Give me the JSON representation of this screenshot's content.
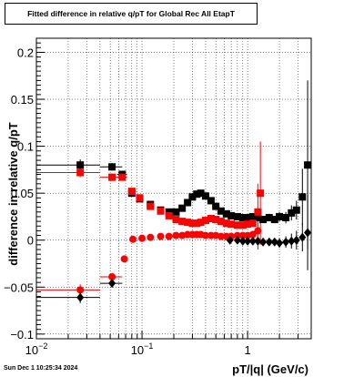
{
  "title": "Fitted difference in relative q/pT for Global Rec All EtapT",
  "timestamp": "Sun Dec  1 10:25:34 2024",
  "chart_data": {
    "type": "scatter",
    "xlabel": "pT/|q| (GeV/c)",
    "ylabel": "difference in relative q/pT",
    "xscale": "log",
    "xlim": [
      0.01,
      4.0
    ],
    "ylim": [
      -0.105,
      0.215
    ],
    "grid": true,
    "x_ticks": [
      {
        "value": 0.01,
        "label": "10",
        "sup": "−2"
      },
      {
        "value": 0.1,
        "label": "10",
        "sup": "−1"
      },
      {
        "value": 1,
        "label": "1",
        "sup": ""
      }
    ],
    "y_ticks": [
      {
        "value": -0.1,
        "label": "−0.1"
      },
      {
        "value": -0.05,
        "label": "−0.05"
      },
      {
        "value": 0,
        "label": "0"
      },
      {
        "value": 0.05,
        "label": "0.05"
      },
      {
        "value": 0.1,
        "label": "0.1"
      },
      {
        "value": 0.15,
        "label": "0.15"
      },
      {
        "value": 0.2,
        "label": "0.2"
      }
    ],
    "series": [
      {
        "color": "#000000",
        "marker": "square",
        "points": [
          {
            "x": 0.026,
            "y": 0.08,
            "xlo": 0.01,
            "xhi": 0.04,
            "ey": 0.006
          },
          {
            "x": 0.052,
            "y": 0.078,
            "xlo": 0.04,
            "xhi": 0.065,
            "ey": 0.004
          },
          {
            "x": 0.065,
            "y": 0.07,
            "xlo": 0.058,
            "xhi": 0.072,
            "ey": 0.003
          },
          {
            "x": 0.08,
            "y": 0.05,
            "ey": 0.002
          },
          {
            "x": 0.095,
            "y": 0.044,
            "ey": 0.002
          },
          {
            "x": 0.12,
            "y": 0.038,
            "ey": 0.002
          },
          {
            "x": 0.15,
            "y": 0.032,
            "ey": 0.002
          },
          {
            "x": 0.18,
            "y": 0.03,
            "ey": 0.002
          },
          {
            "x": 0.21,
            "y": 0.03,
            "ey": 0.002
          },
          {
            "x": 0.24,
            "y": 0.034,
            "ey": 0.002
          },
          {
            "x": 0.27,
            "y": 0.04,
            "ey": 0.002
          },
          {
            "x": 0.3,
            "y": 0.046,
            "ey": 0.002
          },
          {
            "x": 0.33,
            "y": 0.049,
            "ey": 0.002
          },
          {
            "x": 0.36,
            "y": 0.05,
            "ey": 0.002
          },
          {
            "x": 0.4,
            "y": 0.047,
            "ey": 0.002
          },
          {
            "x": 0.45,
            "y": 0.042,
            "ey": 0.002
          },
          {
            "x": 0.5,
            "y": 0.036,
            "ey": 0.002
          },
          {
            "x": 0.56,
            "y": 0.031,
            "ey": 0.002
          },
          {
            "x": 0.63,
            "y": 0.028,
            "ey": 0.002
          },
          {
            "x": 0.7,
            "y": 0.026,
            "ey": 0.002
          },
          {
            "x": 0.8,
            "y": 0.025,
            "ey": 0.002
          },
          {
            "x": 0.9,
            "y": 0.024,
            "ey": 0.002
          },
          {
            "x": 1.0,
            "y": 0.024,
            "ey": 0.002
          },
          {
            "x": 1.12,
            "y": 0.025,
            "ey": 0.003
          },
          {
            "x": 1.25,
            "y": 0.024,
            "ey": 0.003
          },
          {
            "x": 1.4,
            "y": 0.022,
            "ey": 0.003
          },
          {
            "x": 1.6,
            "y": 0.024,
            "ey": 0.004
          },
          {
            "x": 1.8,
            "y": 0.022,
            "ey": 0.004
          },
          {
            "x": 2.0,
            "y": 0.025,
            "ey": 0.005
          },
          {
            "x": 2.3,
            "y": 0.024,
            "ey": 0.006
          },
          {
            "x": 2.6,
            "y": 0.029,
            "ey": 0.008
          },
          {
            "x": 2.9,
            "y": 0.032,
            "ey": 0.01
          },
          {
            "x": 3.3,
            "y": 0.046,
            "ey": 0.03
          },
          {
            "x": 3.7,
            "y": 0.08,
            "ey": 0.09
          }
        ]
      },
      {
        "color": "#ff0000",
        "marker": "square",
        "points": [
          {
            "x": 0.026,
            "y": 0.072,
            "xlo": 0.01,
            "xhi": 0.04,
            "ey": 0.005
          },
          {
            "x": 0.052,
            "y": 0.067,
            "xlo": 0.04,
            "xhi": 0.065,
            "ey": 0.004
          },
          {
            "x": 0.065,
            "y": 0.067,
            "xlo": 0.058,
            "xhi": 0.072,
            "ey": 0.003
          },
          {
            "x": 0.08,
            "y": 0.052,
            "ey": 0.002
          },
          {
            "x": 0.095,
            "y": 0.045,
            "ey": 0.002
          },
          {
            "x": 0.12,
            "y": 0.036,
            "ey": 0.002
          },
          {
            "x": 0.15,
            "y": 0.031,
            "ey": 0.002
          },
          {
            "x": 0.18,
            "y": 0.026,
            "ey": 0.002
          },
          {
            "x": 0.21,
            "y": 0.022,
            "ey": 0.002
          },
          {
            "x": 0.24,
            "y": 0.02,
            "ey": 0.002
          },
          {
            "x": 0.27,
            "y": 0.019,
            "ey": 0.002
          },
          {
            "x": 0.3,
            "y": 0.018,
            "ey": 0.002
          },
          {
            "x": 0.33,
            "y": 0.018,
            "ey": 0.002
          },
          {
            "x": 0.36,
            "y": 0.019,
            "ey": 0.002
          },
          {
            "x": 0.4,
            "y": 0.021,
            "ey": 0.002
          },
          {
            "x": 0.45,
            "y": 0.023,
            "ey": 0.002
          },
          {
            "x": 0.5,
            "y": 0.022,
            "ey": 0.002
          },
          {
            "x": 0.56,
            "y": 0.02,
            "ey": 0.002
          },
          {
            "x": 0.63,
            "y": 0.018,
            "ey": 0.002
          },
          {
            "x": 0.7,
            "y": 0.017,
            "ey": 0.002
          },
          {
            "x": 0.8,
            "y": 0.016,
            "ey": 0.002
          },
          {
            "x": 0.9,
            "y": 0.016,
            "ey": 0.002
          },
          {
            "x": 1.0,
            "y": 0.017,
            "ey": 0.003
          },
          {
            "x": 1.12,
            "y": 0.018,
            "ey": 0.004
          },
          {
            "x": 1.25,
            "y": 0.03,
            "ey": 0.03
          },
          {
            "x": 1.32,
            "y": 0.05,
            "ey": 0.055
          }
        ]
      },
      {
        "color": "#ff0000",
        "marker": "circle",
        "points": [
          {
            "x": 0.026,
            "y": -0.053,
            "xlo": 0.01,
            "xhi": 0.04,
            "ey": 0.006
          },
          {
            "x": 0.052,
            "y": -0.039,
            "xlo": 0.04,
            "xhi": 0.065,
            "ey": 0.004
          },
          {
            "x": 0.068,
            "y": -0.02,
            "ey": 0.003
          },
          {
            "x": 0.082,
            "y": 0.001,
            "ey": 0.002
          },
          {
            "x": 0.1,
            "y": 0.002,
            "ey": 0.002
          },
          {
            "x": 0.12,
            "y": 0.003,
            "ey": 0.002
          },
          {
            "x": 0.15,
            "y": 0.004,
            "ey": 0.002
          },
          {
            "x": 0.18,
            "y": 0.004,
            "ey": 0.002
          },
          {
            "x": 0.21,
            "y": 0.005,
            "ey": 0.002
          },
          {
            "x": 0.24,
            "y": 0.005,
            "ey": 0.002
          },
          {
            "x": 0.27,
            "y": 0.006,
            "ey": 0.002
          },
          {
            "x": 0.3,
            "y": 0.006,
            "ey": 0.002
          },
          {
            "x": 0.33,
            "y": 0.006,
            "ey": 0.002
          },
          {
            "x": 0.36,
            "y": 0.006,
            "ey": 0.002
          },
          {
            "x": 0.4,
            "y": 0.005,
            "ey": 0.002
          },
          {
            "x": 0.45,
            "y": 0.005,
            "ey": 0.002
          },
          {
            "x": 0.5,
            "y": 0.005,
            "ey": 0.002
          },
          {
            "x": 0.56,
            "y": 0.004,
            "ey": 0.002
          },
          {
            "x": 0.63,
            "y": 0.004,
            "ey": 0.002
          },
          {
            "x": 0.7,
            "y": 0.004,
            "ey": 0.002
          },
          {
            "x": 0.8,
            "y": 0.005,
            "ey": 0.002
          },
          {
            "x": 0.9,
            "y": 0.005,
            "ey": 0.002
          },
          {
            "x": 1.0,
            "y": 0.005,
            "ey": 0.003
          },
          {
            "x": 1.12,
            "y": 0.006,
            "ey": 0.004
          },
          {
            "x": 1.25,
            "y": 0.01,
            "ey": 0.02
          }
        ]
      },
      {
        "color": "#000000",
        "marker": "diamond",
        "points": [
          {
            "x": 0.026,
            "y": -0.061,
            "xlo": 0.01,
            "xhi": 0.04,
            "ey": 0.006
          },
          {
            "x": 0.052,
            "y": -0.046,
            "xlo": 0.04,
            "xhi": 0.065,
            "ey": 0.004
          },
          {
            "x": 0.68,
            "y": 0.0,
            "ey": 0.002
          },
          {
            "x": 0.8,
            "y": 0.0,
            "ey": 0.002
          },
          {
            "x": 0.9,
            "y": -0.001,
            "ey": 0.002
          },
          {
            "x": 1.0,
            "y": -0.001,
            "ey": 0.002
          },
          {
            "x": 1.12,
            "y": -0.001,
            "ey": 0.003
          },
          {
            "x": 1.25,
            "y": -0.001,
            "ey": 0.003
          },
          {
            "x": 1.4,
            "y": -0.002,
            "ey": 0.003
          },
          {
            "x": 1.6,
            "y": -0.002,
            "ey": 0.004
          },
          {
            "x": 1.8,
            "y": -0.002,
            "ey": 0.004
          },
          {
            "x": 2.0,
            "y": -0.003,
            "ey": 0.005
          },
          {
            "x": 2.3,
            "y": -0.002,
            "ey": 0.006
          },
          {
            "x": 2.6,
            "y": -0.001,
            "ey": 0.008
          },
          {
            "x": 2.9,
            "y": 0.0,
            "ey": 0.01
          },
          {
            "x": 3.3,
            "y": 0.003,
            "ey": 0.015
          },
          {
            "x": 3.7,
            "y": 0.008,
            "ey": 0.04
          }
        ]
      }
    ]
  }
}
